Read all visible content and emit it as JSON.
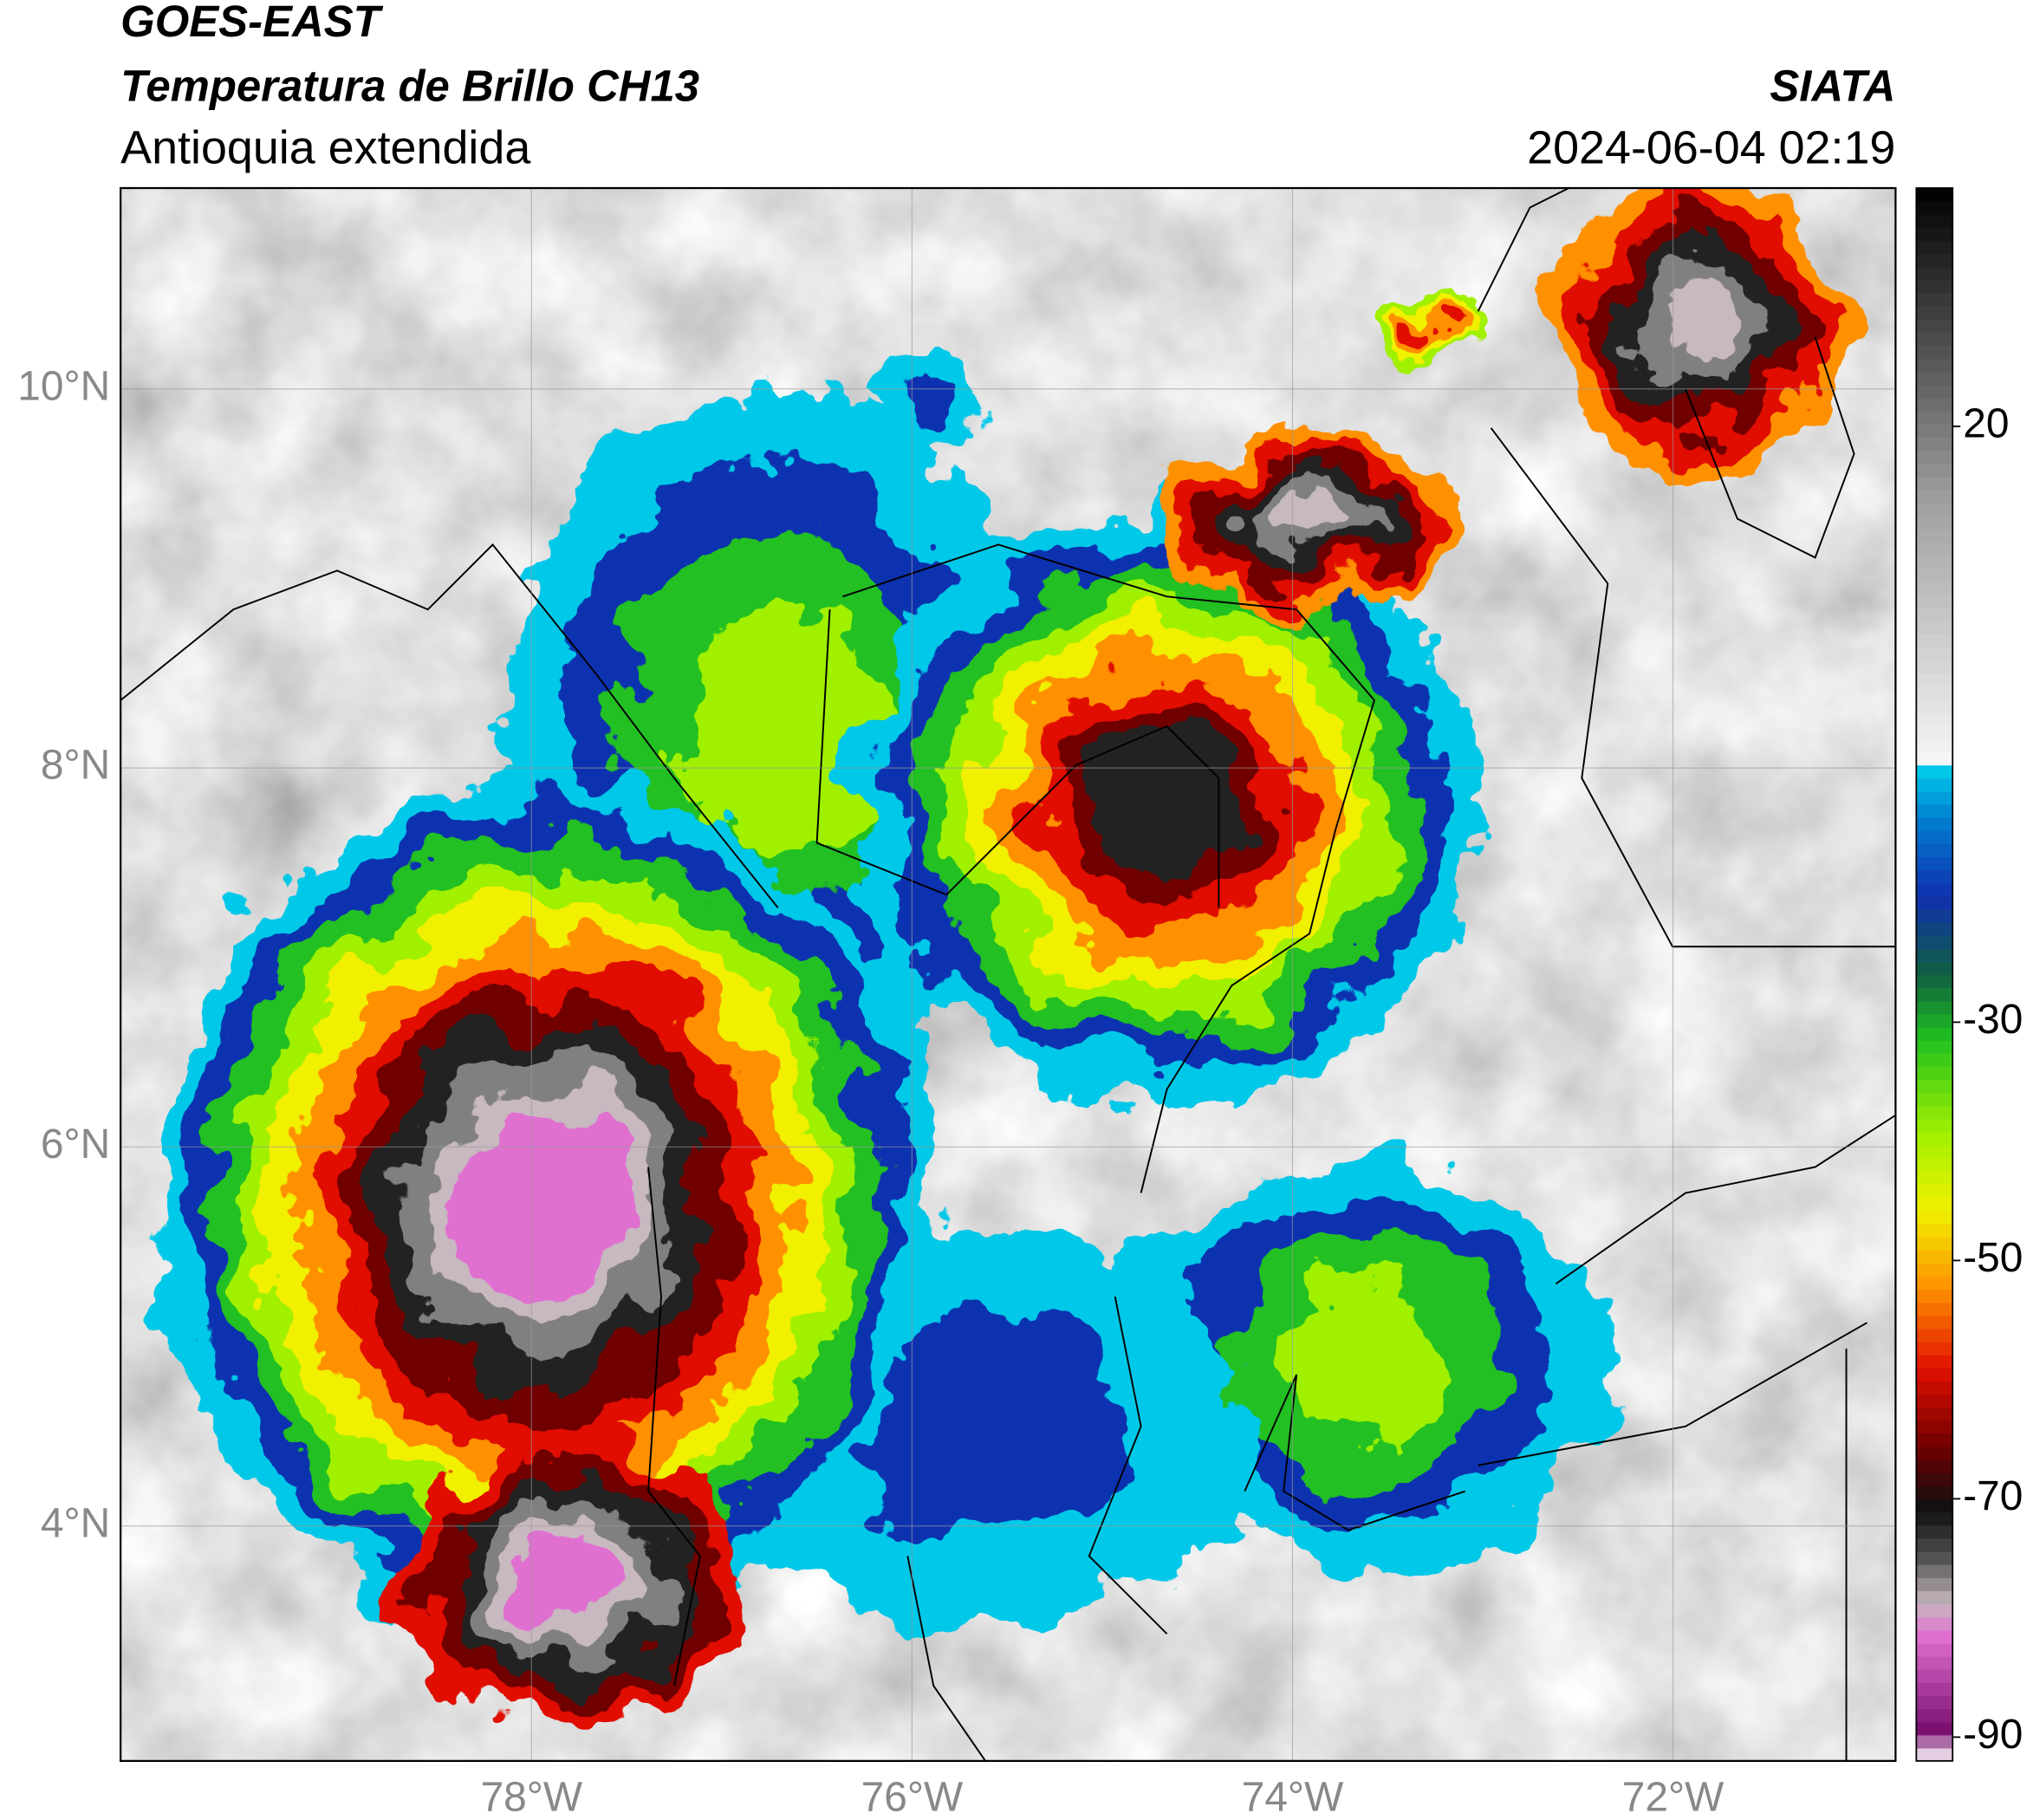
{
  "header": {
    "satellite": "GOES-EAST",
    "product": "Temperatura de Brillo CH13",
    "region": "Antioquia extendida",
    "source": "SIATA",
    "datetime": "2024-06-04 02:19"
  },
  "map": {
    "xlim": [
      -80.16,
      -70.83
    ],
    "ylim": [
      2.76,
      11.06
    ],
    "xticks": [
      {
        "value": -78,
        "label": "78°W"
      },
      {
        "value": -76,
        "label": "76°W"
      },
      {
        "value": -74,
        "label": "74°W"
      },
      {
        "value": -72,
        "label": "72°W"
      }
    ],
    "yticks": [
      {
        "value": 10,
        "label": "10°N"
      },
      {
        "value": 8,
        "label": "8°N"
      },
      {
        "value": 6,
        "label": "6°N"
      },
      {
        "value": 4,
        "label": "4°N"
      }
    ],
    "grid": true
  },
  "colorbar": {
    "lim": [
      -92,
      40
    ],
    "ticks": [
      20,
      -30,
      -50,
      -70,
      -90
    ]
  }
}
